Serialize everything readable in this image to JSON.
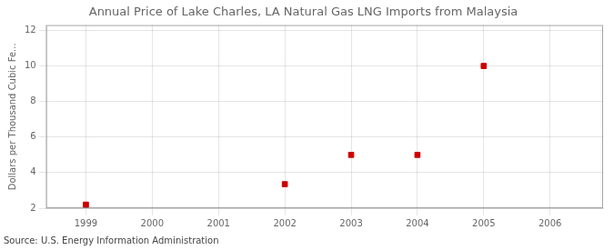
{
  "chart_data": {
    "type": "scatter",
    "title": "Annual Price of Lake Charles, LA Natural Gas LNG Imports from Malaysia",
    "ylabel": "Dollars per Thousand Cubic Fe...",
    "source": "Source: U.S. Energy Information Administration",
    "x": [
      1999,
      2002,
      2003,
      2004,
      2005
    ],
    "values": [
      2.2,
      3.35,
      5.0,
      5.0,
      10.0
    ],
    "color": "#cc0000",
    "marker": "square",
    "xlim": [
      1998.4,
      2006.8
    ],
    "ylim": [
      2,
      12.3
    ],
    "xticks": [
      1999,
      2000,
      2001,
      2002,
      2003,
      2004,
      2005,
      2006
    ],
    "yticks": [
      2,
      4,
      6,
      8,
      10,
      12
    ],
    "grid": true
  }
}
